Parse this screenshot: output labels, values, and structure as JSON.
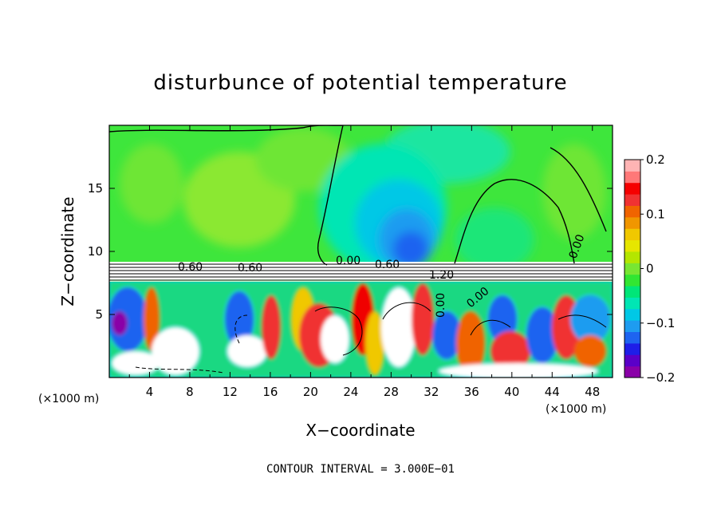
{
  "chart_data": {
    "type": "heatmap",
    "title": "disturbunce of potential temperature",
    "xlabel": "X−coordinate",
    "ylabel": "Z−coordinate",
    "x_unit": "(×1000 m)",
    "z_unit": "(×1000 m)",
    "xlim": [
      0,
      50
    ],
    "ylim": [
      0,
      20
    ],
    "x_ticks": [
      4,
      8,
      12,
      16,
      20,
      24,
      28,
      32,
      36,
      40,
      44,
      48
    ],
    "y_ticks": [
      5,
      10,
      15
    ],
    "colorbar": {
      "min": -0.2,
      "max": 0.2,
      "tick_values": [
        0.2,
        0.1,
        0,
        -0.1,
        -0.2
      ],
      "tick_labels": [
        "0.2",
        "0.1",
        "0",
        "−0.1",
        "−0.2"
      ],
      "colors": [
        "#8a00a8",
        "#5a00c8",
        "#1e1ee8",
        "#1e64f0",
        "#1e9cf0",
        "#00c8e6",
        "#00e6b4",
        "#00e678",
        "#32e632",
        "#78e632",
        "#b4e600",
        "#e6e600",
        "#f0c800",
        "#f09600",
        "#f06400",
        "#f03232",
        "#f50000",
        "#ff7878",
        "#ffb4b4"
      ]
    },
    "contour_labels": [
      "0.60",
      "0.60",
      "0.00",
      "0.60",
      "1.20",
      "0.00",
      "0.00",
      "0.00"
    ],
    "contour_interval_text": "CONTOUR INTERVAL =  3.000E−01"
  }
}
